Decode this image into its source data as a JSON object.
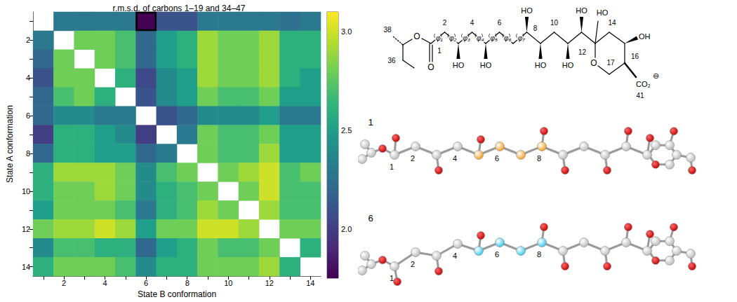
{
  "chart_data": {
    "type": "heatmap",
    "title": "r.m.s.d. of carbons 1–19 and 34–47",
    "x_label": "State B conformation",
    "y_label": "State A conformation",
    "x_categories": [
      null,
      "2",
      null,
      "4",
      null,
      "6",
      null,
      "8",
      null,
      "10",
      null,
      "12",
      null,
      "14"
    ],
    "y_categories": [
      null,
      "2",
      null,
      "4",
      null,
      "6",
      null,
      "8",
      null,
      "10",
      null,
      "12",
      null,
      "14"
    ],
    "cells": [
      [
        null,
        2.3,
        2.3,
        2.3,
        2.3,
        1.75,
        2.1,
        2.1,
        2.3,
        2.3,
        2.3,
        2.3,
        2.25,
        2.3
      ],
      [
        2.3,
        null,
        2.8,
        2.8,
        2.7,
        2.2,
        2.5,
        2.6,
        2.9,
        2.8,
        2.8,
        2.9,
        2.6,
        2.6
      ],
      [
        2.2,
        2.8,
        null,
        2.8,
        2.7,
        2.2,
        2.5,
        2.6,
        2.9,
        2.8,
        2.8,
        2.9,
        2.6,
        2.6
      ],
      [
        2.1,
        2.8,
        2.8,
        null,
        2.6,
        2.05,
        2.4,
        2.5,
        2.9,
        2.8,
        2.8,
        2.9,
        2.6,
        2.5
      ],
      [
        2.2,
        2.7,
        2.8,
        2.6,
        null,
        2.1,
        2.4,
        2.5,
        2.8,
        2.7,
        2.7,
        2.8,
        2.5,
        2.5
      ],
      [
        2.2,
        2.4,
        2.4,
        2.3,
        2.3,
        null,
        2.1,
        2.2,
        2.4,
        2.4,
        2.4,
        2.5,
        2.3,
        2.3
      ],
      [
        2.0,
        2.6,
        2.6,
        2.5,
        2.4,
        2.0,
        null,
        2.3,
        2.8,
        2.7,
        2.7,
        2.8,
        2.5,
        2.5
      ],
      [
        2.2,
        2.6,
        2.6,
        2.5,
        2.5,
        2.2,
        2.3,
        null,
        2.8,
        2.7,
        2.7,
        2.9,
        2.5,
        2.5
      ],
      [
        2.6,
        2.9,
        2.9,
        2.9,
        2.8,
        2.4,
        2.7,
        2.8,
        null,
        2.8,
        2.9,
        3.0,
        2.7,
        2.8
      ],
      [
        2.6,
        2.8,
        2.8,
        2.9,
        2.8,
        2.4,
        2.6,
        2.7,
        2.8,
        null,
        2.8,
        3.0,
        2.7,
        2.7
      ],
      [
        2.5,
        2.8,
        2.8,
        2.8,
        2.7,
        2.3,
        2.6,
        2.7,
        2.9,
        2.8,
        null,
        2.9,
        2.7,
        2.7
      ],
      [
        2.8,
        2.9,
        2.9,
        3.0,
        2.9,
        2.5,
        2.8,
        2.8,
        3.0,
        3.0,
        2.9,
        null,
        2.8,
        2.8
      ],
      [
        2.4,
        2.7,
        2.7,
        2.6,
        2.6,
        2.2,
        2.5,
        2.6,
        2.8,
        2.7,
        2.7,
        2.8,
        null,
        2.6
      ],
      [
        2.6,
        2.8,
        2.8,
        2.8,
        2.7,
        2.4,
        2.6,
        2.6,
        2.8,
        2.8,
        2.8,
        2.9,
        2.6,
        null
      ]
    ],
    "colorbar": {
      "range": [
        1.75,
        3.1
      ],
      "ticks": [
        {
          "value": 2,
          "label": "2.0"
        },
        {
          "value": 2.5,
          "label": "2.5"
        },
        {
          "value": 3,
          "label": "3.0"
        }
      ]
    },
    "highlight": {
      "state_a": 1,
      "state_b": 6
    }
  },
  "structure": {
    "atom_numbers": [
      "38",
      "36",
      "1",
      "2",
      "4",
      "6",
      "8",
      "10",
      "12",
      "14",
      "17",
      "16",
      "41"
    ],
    "oxygens": [
      "O",
      "O",
      "O"
    ],
    "hydroxyls": [
      "HO",
      "HO",
      "HO",
      "HO",
      "HO",
      "HO",
      "HO",
      "OH"
    ],
    "carboxylate": "CO₂",
    "charge": "⊖",
    "torsions": [
      "φ₁",
      "φ₂",
      "φ₃",
      "φ₄",
      "φ₅",
      "φ₆",
      "φ₇"
    ]
  },
  "conformers": [
    {
      "label": "1",
      "numbers": [
        "1",
        "2",
        "4",
        "6",
        "8"
      ],
      "color": "#f29a1b"
    },
    {
      "label": "6",
      "numbers": [
        "1",
        "2",
        "4",
        "6",
        "8"
      ],
      "color": "#33c6ea"
    }
  ]
}
